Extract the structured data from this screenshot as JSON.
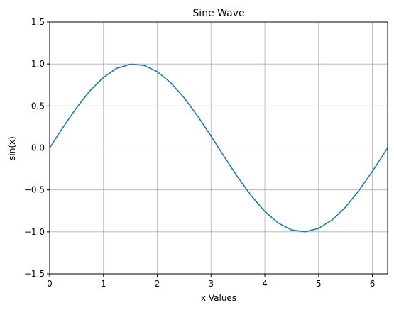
{
  "chart_data": {
    "type": "line",
    "title": "Sine Wave",
    "xlabel": "x Values",
    "ylabel": "sin(x)",
    "xlim": [
      0,
      6.283185307
    ],
    "ylim": [
      -1.5,
      1.5
    ],
    "x_ticks": [
      0,
      1,
      2,
      3,
      4,
      5,
      6
    ],
    "y_ticks": [
      -1.5,
      -1.0,
      -0.5,
      0.0,
      0.5,
      1.0,
      1.5
    ],
    "x_tick_labels": [
      "0",
      "1",
      "2",
      "3",
      "4",
      "5",
      "6"
    ],
    "y_tick_labels": [
      "−1.5",
      "−1.0",
      "−0.5",
      "0.0",
      "0.5",
      "1.0",
      "1.5"
    ],
    "grid": true,
    "series": [
      {
        "color": "#1f77b4",
        "x": [
          0,
          0.25,
          0.5,
          0.75,
          1.0,
          1.25,
          1.5,
          1.75,
          2.0,
          2.25,
          2.5,
          2.75,
          3.0,
          3.25,
          3.5,
          3.75,
          4.0,
          4.25,
          4.5,
          4.75,
          5.0,
          5.25,
          5.5,
          5.75,
          6.0,
          6.25,
          6.283185307
        ],
        "y": [
          0.0,
          0.247,
          0.479,
          0.682,
          0.841,
          0.949,
          0.997,
          0.984,
          0.909,
          0.778,
          0.598,
          0.382,
          0.141,
          -0.108,
          -0.351,
          -0.572,
          -0.757,
          -0.895,
          -0.978,
          -0.999,
          -0.959,
          -0.859,
          -0.706,
          -0.508,
          -0.279,
          -0.033,
          0.0
        ]
      }
    ]
  }
}
